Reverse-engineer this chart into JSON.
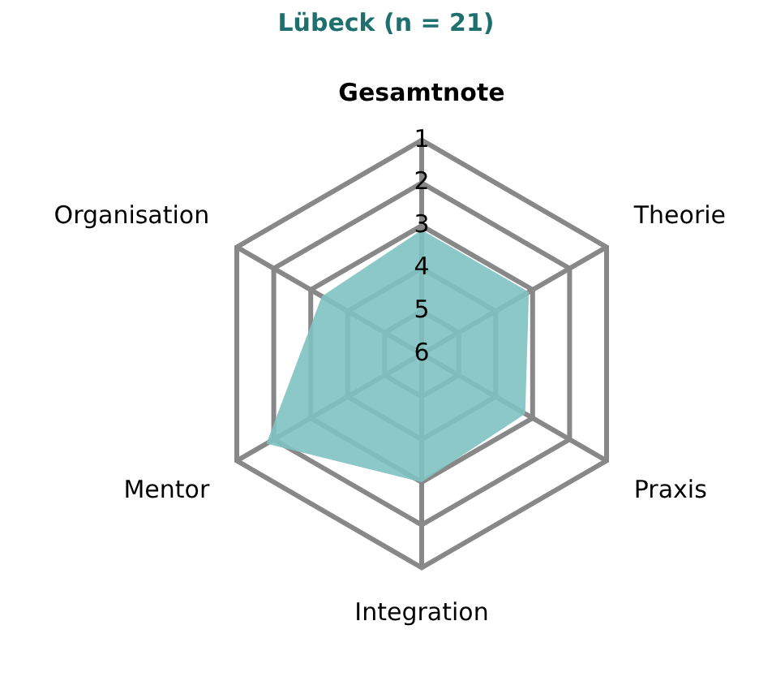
{
  "chart_data": {
    "type": "radar",
    "title": "Lübeck (n = 21)",
    "categories": [
      "Gesamtnote",
      "Theorie",
      "Praxis",
      "Integration",
      "Mentor",
      "Organisation"
    ],
    "series": [
      {
        "color": "#7fc2c2",
        "values": [
          3.1,
          3.1,
          3.2,
          3.0,
          1.8,
          3.3
        ]
      }
    ],
    "ylim": [
      6,
      1
    ],
    "yticks": [
      6,
      5,
      4,
      3,
      2,
      1
    ],
    "grid": true,
    "legend": false
  }
}
